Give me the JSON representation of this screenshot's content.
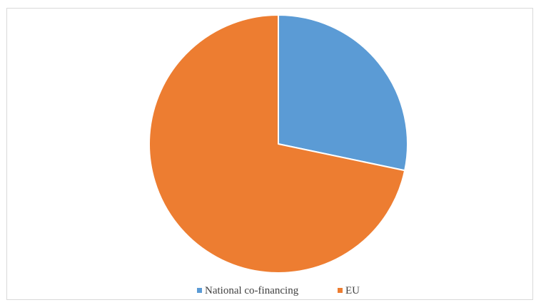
{
  "chart_data": {
    "type": "pie",
    "title": "",
    "slices": [
      {
        "label": "National co-financing",
        "value": 28.3,
        "color": "#5b9bd5"
      },
      {
        "label": "EU",
        "value": 71.7,
        "color": "#ed7d31"
      }
    ],
    "start_angle_deg": 0,
    "direction": "clockwise",
    "legend": {
      "position": "bottom",
      "entries": [
        "National co-financing",
        "EU"
      ]
    }
  }
}
